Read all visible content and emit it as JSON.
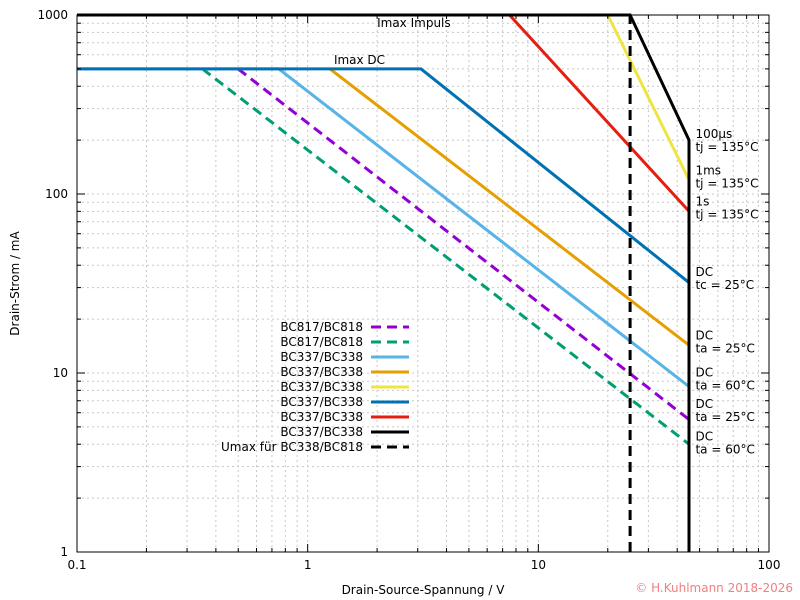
{
  "chart_data": {
    "type": "line",
    "title": "",
    "xlabel": "Drain-Source-Spannung / V",
    "ylabel": "Drain-Strom / mA",
    "xscale": "log",
    "yscale": "log",
    "xlim": [
      0.1,
      100
    ],
    "ylim": [
      1,
      1000
    ],
    "grid": true,
    "legend_position": "center-left",
    "x_tick_labels": [
      "0.1",
      "1",
      "10",
      "100"
    ],
    "y_tick_labels": [
      "1",
      "10",
      "100",
      "1000"
    ],
    "series": [
      {
        "name": "BC817/BC818",
        "color": "#9400d3",
        "dash": "dashed",
        "points": [
          [
            0.5,
            500
          ],
          [
            45,
            5.5
          ]
        ]
      },
      {
        "name": "BC817/BC818",
        "color": "#009e73",
        "dash": "dashed",
        "points": [
          [
            0.35,
            500
          ],
          [
            45,
            4
          ]
        ]
      },
      {
        "name": "BC337/BC338",
        "color": "#56b4e9",
        "dash": "solid",
        "points": [
          [
            0.1,
            500
          ],
          [
            0.75,
            500
          ],
          [
            45,
            8.4
          ]
        ]
      },
      {
        "name": "BC337/BC338",
        "color": "#e69f00",
        "dash": "solid",
        "points": [
          [
            1.25,
            500
          ],
          [
            45,
            14.3
          ]
        ]
      },
      {
        "name": "BC337/BC338",
        "color": "#f0e442",
        "dash": "solid",
        "points": [
          [
            20,
            1000
          ],
          [
            45,
            120
          ]
        ]
      },
      {
        "name": "BC337/BC338",
        "color": "#0072b2",
        "dash": "solid",
        "points": [
          [
            0.1,
            500
          ],
          [
            3.1,
            500
          ],
          [
            45,
            32
          ]
        ]
      },
      {
        "name": "BC337/BC338",
        "color": "#e51e10",
        "dash": "solid",
        "points": [
          [
            7.5,
            1000
          ],
          [
            45,
            80
          ]
        ]
      },
      {
        "name": "BC337/BC338",
        "color": "#000000",
        "dash": "solid",
        "points": [
          [
            0.1,
            1000
          ],
          [
            25,
            1000
          ],
          [
            45,
            200
          ],
          [
            45,
            1
          ]
        ]
      },
      {
        "name": "Umax für BC338/BC818",
        "color": "#000000",
        "dash": "dashed",
        "points": [
          [
            25,
            1
          ],
          [
            25,
            1000
          ]
        ]
      }
    ],
    "annotations": [
      {
        "line1": "Imax Impuls",
        "line2": "",
        "x": 2.0,
        "y": 1000
      },
      {
        "line1": "Imax DC",
        "line2": "",
        "x": 1.3,
        "y": 500
      },
      {
        "line1": "100µs",
        "line2": "tj = 135°C",
        "x": 48,
        "y": 200
      },
      {
        "line1": "1ms",
        "line2": "tj = 135°C",
        "x": 48,
        "y": 125
      },
      {
        "line1": "1s",
        "line2": "tj = 135°C",
        "x": 48,
        "y": 84
      },
      {
        "line1": "DC",
        "line2": "tc = 25°C",
        "x": 48,
        "y": 34
      },
      {
        "line1": "DC",
        "line2": "ta = 25°C",
        "x": 48,
        "y": 15
      },
      {
        "line1": "DC",
        "line2": "ta = 60°C",
        "x": 48,
        "y": 9.3
      },
      {
        "line1": "DC",
        "line2": "ta = 25°C",
        "x": 48,
        "y": 6.2
      },
      {
        "line1": "DC",
        "line2": "ta = 60°C",
        "x": 48,
        "y": 4.1
      }
    ]
  },
  "copyright": "© H.Kuhlmann 2018-2026"
}
